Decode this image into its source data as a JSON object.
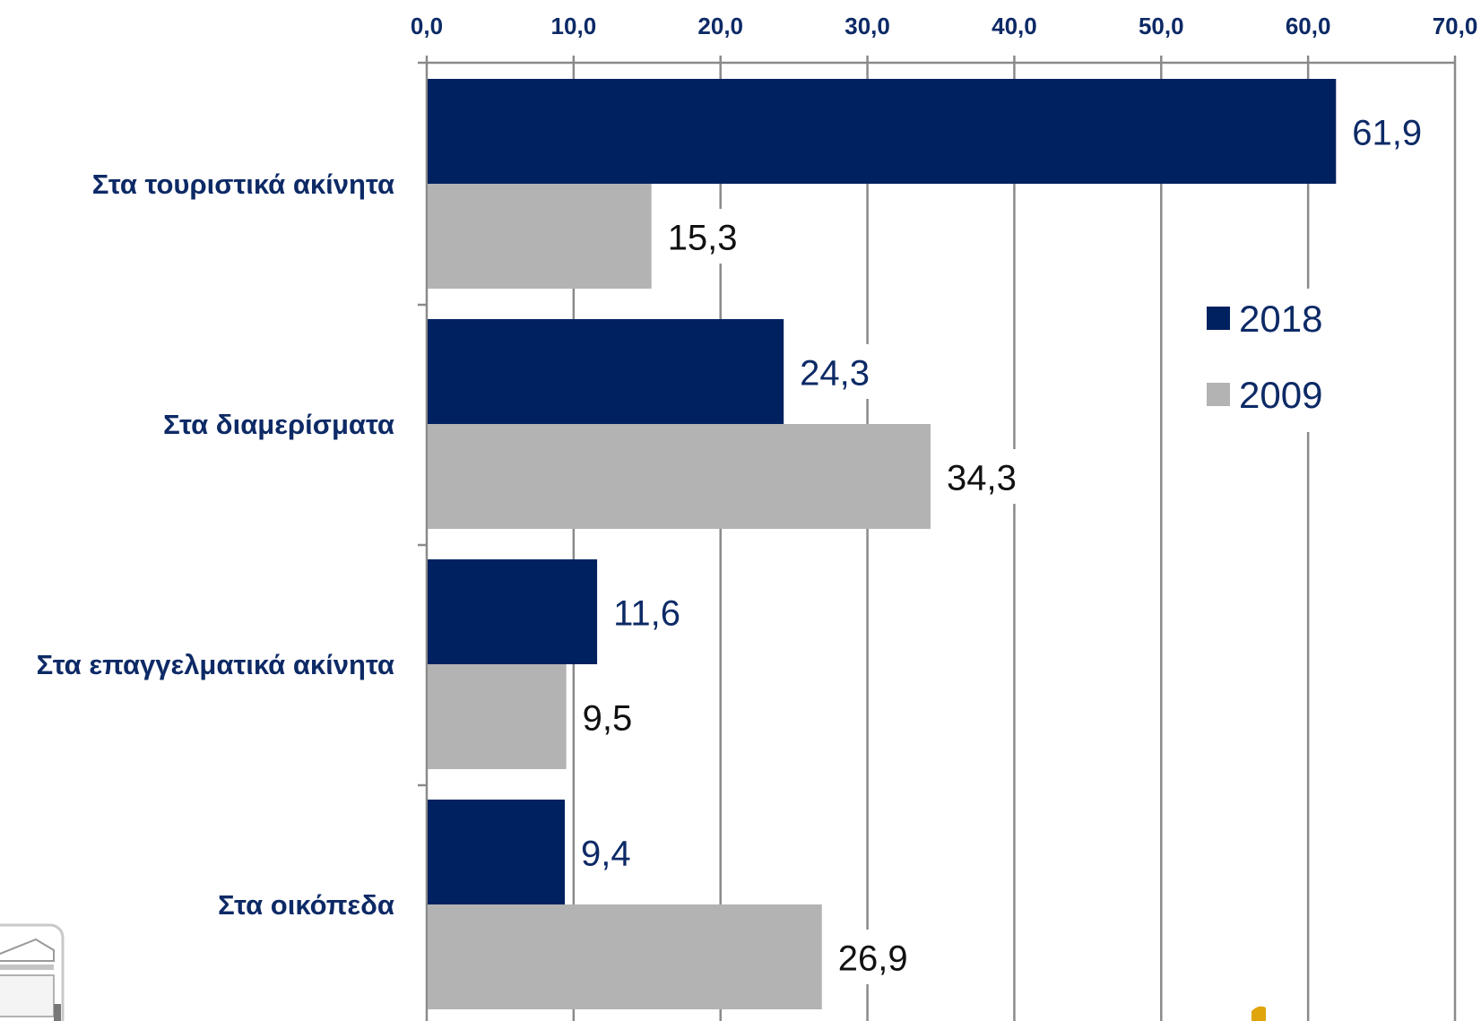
{
  "colors": {
    "series_2018": "#00215f",
    "series_2009": "#b3b3b3",
    "axis_text": "#0d2a66",
    "value_dark_series": "#0d2a66",
    "value_light_series": "#111111",
    "grid": "#8a8a8a"
  },
  "chart_data": {
    "type": "bar",
    "orientation": "horizontal",
    "title": "",
    "xlabel": "",
    "ylabel": "",
    "xlim": [
      0,
      70
    ],
    "x_ticks": [
      "0,0",
      "10,0",
      "20,0",
      "30,0",
      "40,0",
      "50,0",
      "60,0",
      "70,0"
    ],
    "x_tick_values": [
      0,
      10,
      20,
      30,
      40,
      50,
      60,
      70
    ],
    "x_axis_position": "top",
    "grid": true,
    "legend_position": "right",
    "categories": [
      "Στα τουριστικά ακίνητα",
      "Στα διαμερίσματα",
      "Στα επαγγελματικά ακίνητα",
      "Στα οικόπεδα"
    ],
    "series": [
      {
        "name": "2018",
        "values": [
          61.9,
          24.3,
          11.6,
          9.4
        ],
        "labels": [
          "61,9",
          "24,3",
          "11,6",
          "9,4"
        ]
      },
      {
        "name": "2009",
        "values": [
          15.3,
          34.3,
          9.5,
          26.9
        ],
        "labels": [
          "15,3",
          "34,3",
          "9,5",
          "26,9"
        ]
      }
    ]
  }
}
